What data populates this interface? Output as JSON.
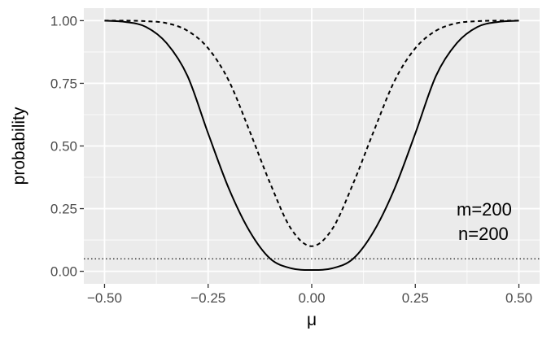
{
  "chart_data": {
    "type": "line",
    "title": "",
    "xlabel": "μ",
    "ylabel": "probability",
    "xlim": [
      -0.55,
      0.55
    ],
    "ylim": [
      -0.05,
      1.05
    ],
    "grid": true,
    "x_ticks": [
      -0.5,
      -0.25,
      0.0,
      0.25,
      0.5
    ],
    "x_tick_labels": [
      "−0.50",
      "−0.25",
      "0.00",
      "0.25",
      "0.50"
    ],
    "y_ticks": [
      0.0,
      0.25,
      0.5,
      0.75,
      1.0
    ],
    "y_tick_labels": [
      "0.00",
      "0.25",
      "0.50",
      "0.75",
      "1.00"
    ],
    "annotations": [
      "m=200",
      "n=200"
    ],
    "hline": {
      "y": 0.05,
      "style": "dotted"
    },
    "series": [
      {
        "style": "solid",
        "color": "#000000",
        "x": [
          -0.5,
          -0.45,
          -0.4,
          -0.35,
          -0.3,
          -0.25,
          -0.2,
          -0.15,
          -0.1,
          -0.05,
          0.0,
          0.05,
          0.1,
          0.15,
          0.2,
          0.25,
          0.3,
          0.35,
          0.4,
          0.45,
          0.5
        ],
        "values": [
          1.0,
          0.995,
          0.975,
          0.91,
          0.78,
          0.55,
          0.33,
          0.16,
          0.05,
          0.012,
          0.005,
          0.012,
          0.05,
          0.16,
          0.33,
          0.55,
          0.78,
          0.91,
          0.975,
          0.995,
          1.0
        ]
      },
      {
        "style": "dashed",
        "color": "#000000",
        "x": [
          -0.5,
          -0.45,
          -0.4,
          -0.35,
          -0.3,
          -0.25,
          -0.2,
          -0.15,
          -0.1,
          -0.05,
          0.0,
          0.05,
          0.1,
          0.15,
          0.2,
          0.25,
          0.3,
          0.35,
          0.4,
          0.45,
          0.5
        ],
        "values": [
          1.0,
          1.0,
          0.998,
          0.99,
          0.96,
          0.89,
          0.76,
          0.56,
          0.35,
          0.17,
          0.1,
          0.17,
          0.35,
          0.56,
          0.76,
          0.89,
          0.96,
          0.99,
          0.998,
          1.0,
          1.0
        ]
      }
    ]
  }
}
